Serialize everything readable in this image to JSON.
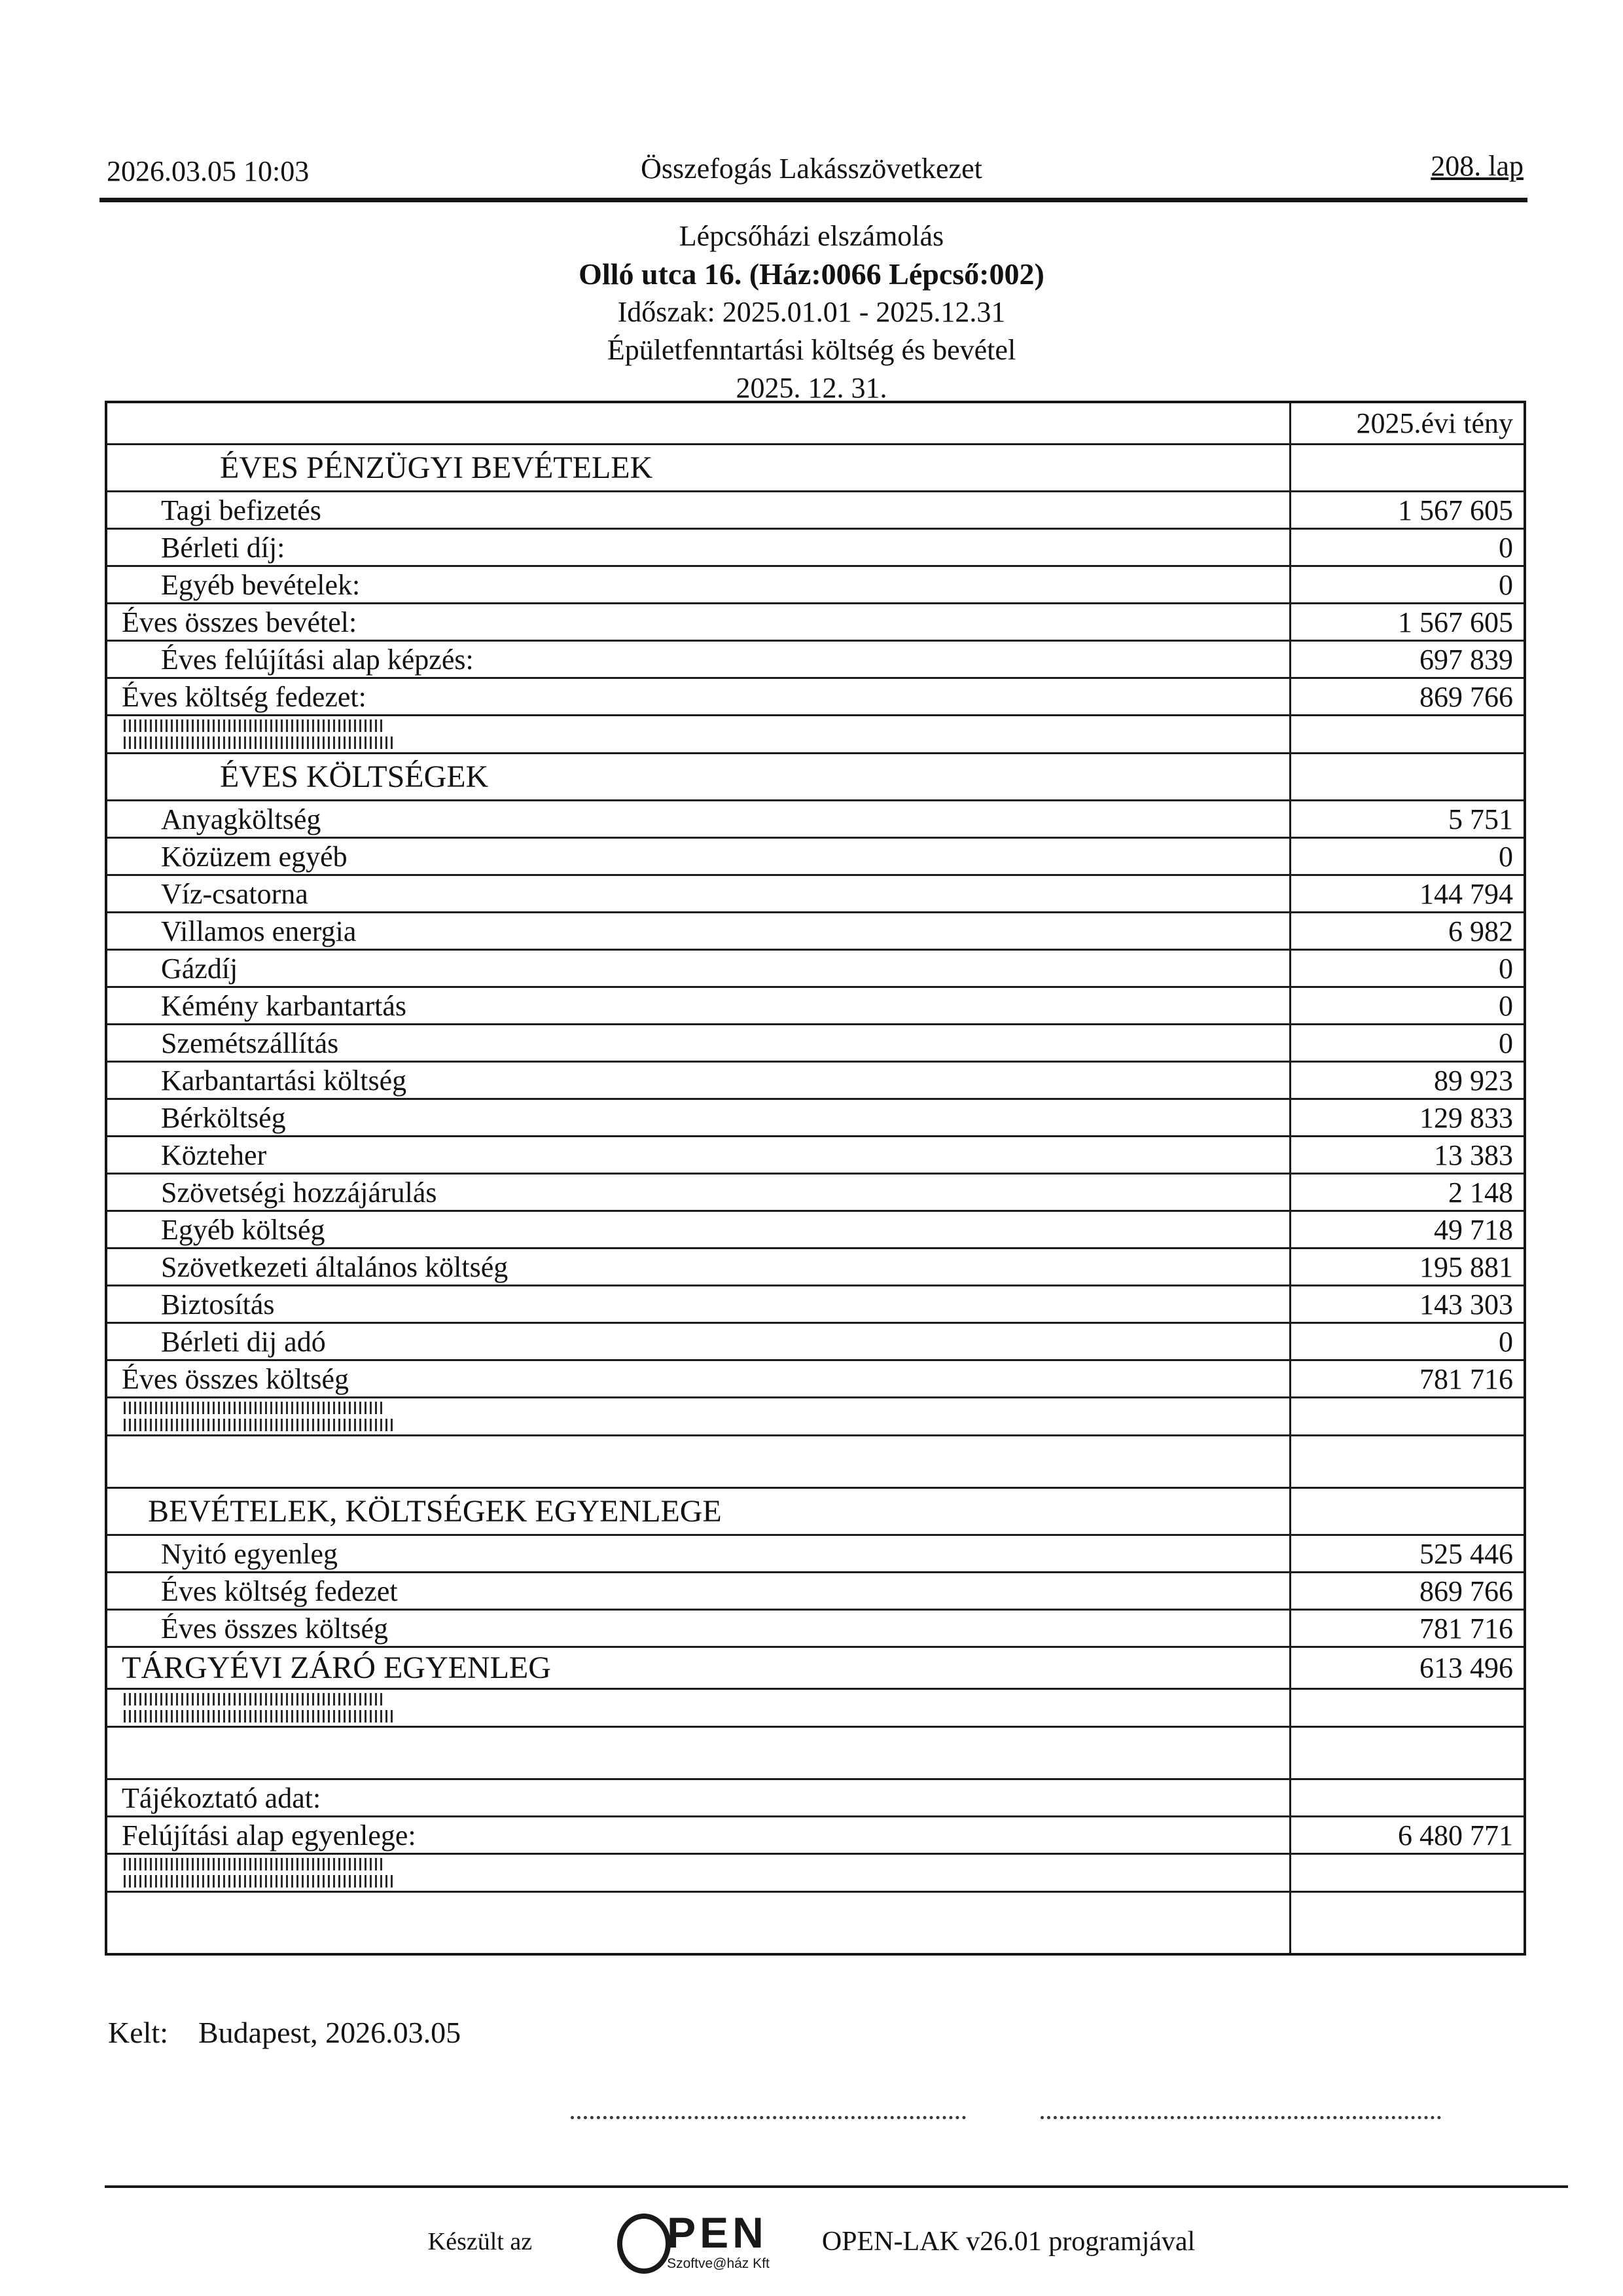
{
  "header": {
    "datetime": "2026.03.05 10:03",
    "org": "Összefogás Lakásszövetkezet",
    "page_label": "208. lap"
  },
  "title_block": {
    "line1": "Lépcsőházi elszámolás",
    "line2": "Olló utca 16. (Ház:0066 Lépcső:002)",
    "line3": "Időszak: 2025.01.01 - 2025.12.31",
    "line4": "Épületfenntartási költség és bevétel",
    "line5": "2025. 12. 31."
  },
  "table": {
    "value_header": "2025.évi tény",
    "rows": [
      {
        "type": "colhead",
        "label": "",
        "value": "2025.évi tény"
      },
      {
        "type": "section",
        "label": "ÉVES PÉNZÜGYI BEVÉTELEK",
        "value": ""
      },
      {
        "type": "item",
        "label": "Tagi  befizetés",
        "value": "1 567 605"
      },
      {
        "type": "item",
        "label": "Bérleti díj:",
        "value": "0"
      },
      {
        "type": "item",
        "label": "Egyéb bevételek:",
        "value": "0"
      },
      {
        "type": "total",
        "label": "Éves összes bevétel:",
        "value": "1 567 605"
      },
      {
        "type": "item",
        "label": "Éves felújítási alap képzés:",
        "value": "697 839"
      },
      {
        "type": "total",
        "label": "Éves költség fedezet:",
        "value": "869 766"
      },
      {
        "type": "bars",
        "label": "",
        "value": ""
      },
      {
        "type": "section",
        "label": "ÉVES KÖLTSÉGEK",
        "value": ""
      },
      {
        "type": "item",
        "label": "Anyagköltség",
        "value": "5 751"
      },
      {
        "type": "item",
        "label": "Közüzem egyéb",
        "value": "0"
      },
      {
        "type": "item",
        "label": "Víz-csatorna",
        "value": "144 794"
      },
      {
        "type": "item",
        "label": "Villamos energia",
        "value": "6 982"
      },
      {
        "type": "item",
        "label": "Gázdíj",
        "value": "0"
      },
      {
        "type": "item",
        "label": "Kémény karbantartás",
        "value": "0"
      },
      {
        "type": "item",
        "label": "Szemétszállítás",
        "value": "0"
      },
      {
        "type": "item",
        "label": "Karbantartási költség",
        "value": "89 923"
      },
      {
        "type": "item",
        "label": "Bérköltség",
        "value": "129 833"
      },
      {
        "type": "item",
        "label": "Közteher",
        "value": "13 383"
      },
      {
        "type": "item",
        "label": "Szövetségi hozzájárulás",
        "value": "2 148"
      },
      {
        "type": "item",
        "label": "Egyéb költség",
        "value": "49 718"
      },
      {
        "type": "item",
        "label": "Szövetkezeti általános költség",
        "value": "195 881"
      },
      {
        "type": "item",
        "label": "Biztosítás",
        "value": "143 303"
      },
      {
        "type": "item",
        "label": "Bérleti dij adó",
        "value": "0"
      },
      {
        "type": "total",
        "label": "Éves összes költség",
        "value": "781 716"
      },
      {
        "type": "bars",
        "label": "",
        "value": ""
      },
      {
        "type": "empty",
        "label": "",
        "value": ""
      },
      {
        "type": "section2",
        "label": "BEVÉTELEK, KÖLTSÉGEK EGYENLEGE",
        "value": ""
      },
      {
        "type": "item",
        "label": "Nyitó egyenleg",
        "value": "525 446"
      },
      {
        "type": "item",
        "label": "Éves költség fedezet",
        "value": "869 766"
      },
      {
        "type": "item",
        "label": "Éves összes költség",
        "value": "781 716"
      },
      {
        "type": "grand",
        "label": "TÁRGYÉVI ZÁRÓ EGYENLEG",
        "value": "613 496"
      },
      {
        "type": "bars",
        "label": "",
        "value": ""
      },
      {
        "type": "empty",
        "label": "",
        "value": ""
      },
      {
        "type": "total",
        "label": "Tájékoztató adat:",
        "value": ""
      },
      {
        "type": "total",
        "label": "Felújítási alap egyenlege:",
        "value": "6 480 771"
      },
      {
        "type": "bars",
        "label": "",
        "value": ""
      },
      {
        "type": "empty-last",
        "label": "",
        "value": ""
      }
    ]
  },
  "kelt": {
    "label": "Kelt:",
    "value": "Budapest, 2026.03.05"
  },
  "footer": {
    "made_prefix": "Készült az",
    "logo_main": "PEN",
    "logo_sub": "Szoftve@ház Kft",
    "made_suffix": "OPEN-LAK v26.01 programjával"
  }
}
